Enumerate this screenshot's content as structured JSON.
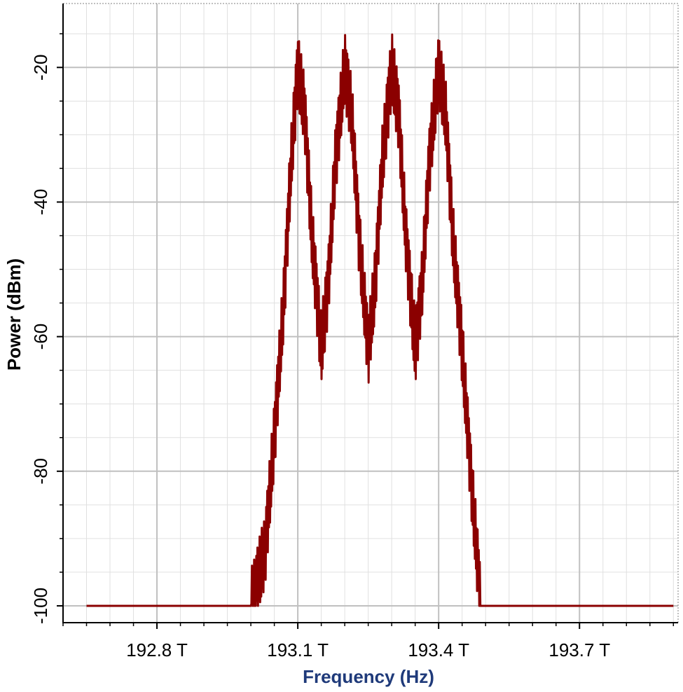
{
  "chart_data": {
    "type": "line",
    "title": "",
    "xlabel": "Frequency (Hz)",
    "ylabel": "Power (dBm)",
    "xlim": [
      192.6,
      193.91
    ],
    "ylim": [
      -102.5,
      -10.5
    ],
    "x_ticks": [
      {
        "value": 192.8,
        "label": "192.8 T"
      },
      {
        "value": 193.1,
        "label": "193.1 T"
      },
      {
        "value": 193.4,
        "label": "193.4 T"
      },
      {
        "value": 193.7,
        "label": "193.7 T"
      }
    ],
    "y_ticks": [
      {
        "value": -20,
        "label": "-20"
      },
      {
        "value": -40,
        "label": "-40"
      },
      {
        "value": -60,
        "label": "-60"
      },
      {
        "value": -80,
        "label": "-80"
      },
      {
        "value": -100,
        "label": "-100"
      }
    ],
    "grid": true,
    "series": [
      {
        "color": "#8b0000",
        "x": [
          192.65,
          193.0,
          193.03,
          193.05,
          193.07,
          193.085,
          193.1,
          193.115,
          193.13,
          193.15,
          193.165,
          193.18,
          193.2,
          193.215,
          193.23,
          193.25,
          193.265,
          193.28,
          193.3,
          193.315,
          193.33,
          193.35,
          193.365,
          193.38,
          193.4,
          193.415,
          193.43,
          193.45,
          193.47,
          193.49,
          193.9
        ],
        "y": [
          -100,
          -100,
          -92,
          -75,
          -55,
          -35,
          -20,
          -27,
          -45,
          -62,
          -52,
          -34,
          -20,
          -27,
          -45,
          -62,
          -52,
          -34,
          -20,
          -27,
          -45,
          -62,
          -52,
          -34,
          -20,
          -27,
          -45,
          -62,
          -82,
          -100,
          -100
        ]
      }
    ]
  }
}
